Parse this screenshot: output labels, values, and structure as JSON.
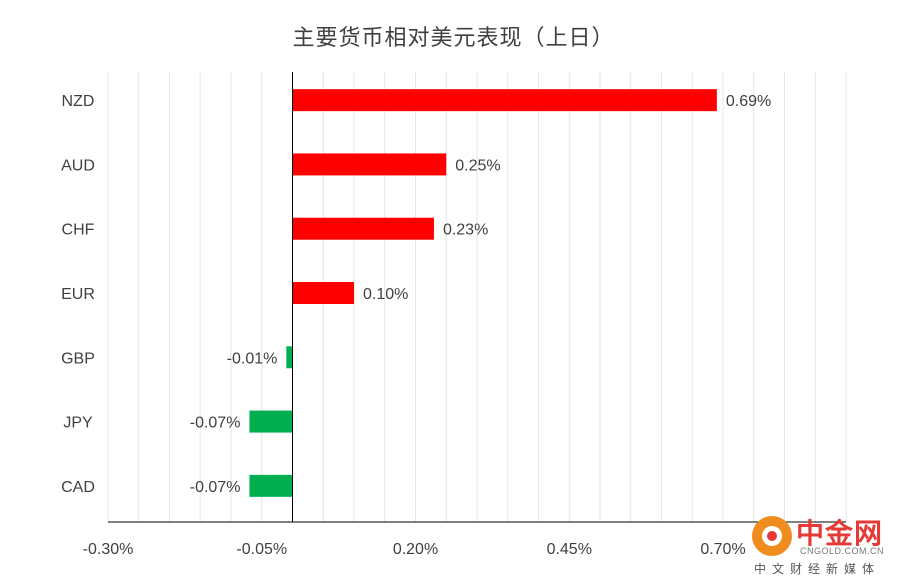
{
  "chart_data": {
    "type": "bar",
    "orientation": "horizontal",
    "title": "主要货币相对美元表现（上日）",
    "categories": [
      "NZD",
      "AUD",
      "CHF",
      "EUR",
      "GBP",
      "JPY",
      "CAD"
    ],
    "values": [
      0.69,
      0.25,
      0.23,
      0.1,
      -0.01,
      -0.07,
      -0.07
    ],
    "value_labels": [
      "0.69%",
      "0.25%",
      "0.23%",
      "0.10%",
      "-0.01%",
      "-0.07%",
      "-0.07%"
    ],
    "xlim": [
      -0.3,
      0.9
    ],
    "x_ticks": [
      -0.3,
      -0.05,
      0.2,
      0.45,
      0.7
    ],
    "x_tick_labels": [
      "-0.30%",
      "-0.05%",
      "0.20%",
      "0.45%",
      "0.70%"
    ],
    "grid": "vertical",
    "colors": {
      "positive": "#ff0000",
      "negative": "#00b050",
      "grid": "#e6e6e6",
      "axis": "#000000"
    }
  },
  "watermark": {
    "name": "中金网",
    "domain": "CNGOLD.COM.CN",
    "slogan": "中文财经新媒体",
    "colors": {
      "brand_red": "#e53935",
      "brand_orange": "#f08c1e"
    }
  }
}
